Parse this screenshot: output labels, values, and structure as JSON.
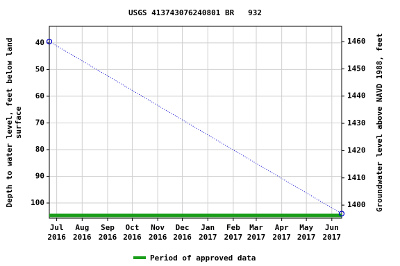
{
  "chart_data": {
    "type": "line",
    "title": "USGS 413743076240801 BR   932",
    "y_label": [
      "Depth to water level, feet below land",
      "surface"
    ],
    "y2_label": "Groundwater level above NAVD 1988, feet",
    "xlim": [
      "2016-06-22",
      "2017-06-13"
    ],
    "xticks": [
      {
        "value": "2016-07-01",
        "label": "Jul 2016"
      },
      {
        "value": "2016-08-01",
        "label": "Aug 2016"
      },
      {
        "value": "2016-09-01",
        "label": "Sep 2016"
      },
      {
        "value": "2016-10-01",
        "label": "Oct 2016"
      },
      {
        "value": "2016-11-01",
        "label": "Nov 2016"
      },
      {
        "value": "2016-12-01",
        "label": "Dec 2016"
      },
      {
        "value": "2017-01-01",
        "label": "Jan 2017"
      },
      {
        "value": "2017-02-01",
        "label": "Feb 2017"
      },
      {
        "value": "2017-03-01",
        "label": "Mar 2017"
      },
      {
        "value": "2017-04-01",
        "label": "Apr 2017"
      },
      {
        "value": "2017-05-01",
        "label": "May 2017"
      },
      {
        "value": "2017-06-01",
        "label": "Jun 2017"
      }
    ],
    "ylim": [
      33.8,
      105.7
    ],
    "y_inverted": true,
    "yticks": [
      40,
      50,
      60,
      70,
      80,
      90,
      100
    ],
    "y2lim": [
      1395.2,
      1465.6
    ],
    "y2ticks": [
      1400,
      1410,
      1420,
      1430,
      1440,
      1450,
      1460
    ],
    "grid": true,
    "x": [
      "2016-06-22",
      "2017-06-13"
    ],
    "series": [
      {
        "name": "Depth to water level",
        "color": "#0000cc",
        "values": [
          39.5,
          104
        ]
      }
    ],
    "approved_period": {
      "name": "Period of approved data",
      "color": "#1a9e1a",
      "x": [
        "2016-06-22",
        "2017-06-13"
      ]
    }
  }
}
